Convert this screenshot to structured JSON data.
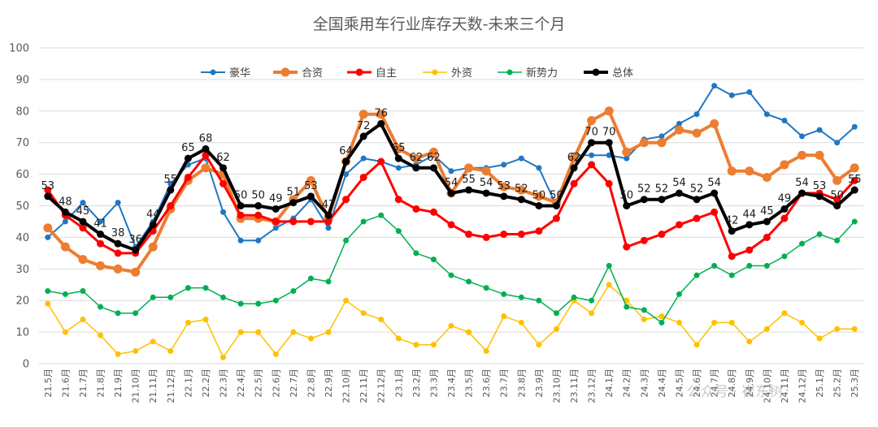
{
  "chart_data": {
    "type": "line",
    "title": "全国乘用车行业库存天数-未来三个月",
    "xlabel": "",
    "ylabel": "",
    "ylim": [
      0,
      100
    ],
    "yticks": [
      0,
      10,
      20,
      30,
      40,
      50,
      60,
      70,
      80,
      90,
      100
    ],
    "grid": true,
    "legend_position": "top",
    "categories": [
      "21.5月",
      "21.6月",
      "21.7月",
      "21.8月",
      "21.9月",
      "21.10月",
      "21.11月",
      "21.12月",
      "22.1月",
      "22.2月",
      "22.3月",
      "22.4月",
      "22.5月",
      "22.6月",
      "22.7月",
      "22.8月",
      "22.9月",
      "22.10月",
      "22.11月",
      "22.12月",
      "23.1月",
      "23.2月",
      "23.3月",
      "23.4月",
      "23.5月",
      "23.6月",
      "23.7月",
      "23.8月",
      "23.9月",
      "23.10月",
      "23.11月",
      "23.12月",
      "24.1月",
      "24.2月",
      "24.3月",
      "24.4月",
      "24.5月",
      "24.6月",
      "24.7月",
      "24.8月",
      "24.9月",
      "24.10月",
      "24.11月",
      "24.12月",
      "25.1月",
      "25.2月",
      "25.3月"
    ],
    "series": [
      {
        "name": "豪华",
        "color": "#1f77c4",
        "width": 2,
        "marker": 3.5,
        "values": [
          40,
          45,
          51,
          45,
          51,
          37,
          45,
          57,
          63,
          65,
          48,
          39,
          39,
          43,
          46,
          52,
          43,
          60,
          65,
          64,
          62,
          63,
          66,
          61,
          62,
          62,
          63,
          65,
          62,
          50,
          66,
          66,
          66,
          65,
          71,
          72,
          76,
          79,
          88,
          85,
          86,
          79,
          77,
          72,
          74,
          70,
          75
        ]
      },
      {
        "name": "合资",
        "color": "#ed7d31",
        "width": 4,
        "marker": 5.5,
        "values": [
          43,
          37,
          33,
          31,
          30,
          29,
          37,
          49,
          58,
          62,
          60,
          46,
          46,
          45,
          52,
          58,
          46,
          64,
          79,
          79,
          68,
          65,
          67,
          54,
          62,
          61,
          56,
          55,
          53,
          51,
          65,
          77,
          80,
          67,
          70,
          70,
          74,
          73,
          76,
          61,
          61,
          59,
          63,
          66,
          66,
          58,
          62
        ]
      },
      {
        "name": "自主",
        "color": "#ff0000",
        "width": 3,
        "marker": 4.5,
        "values": [
          55,
          47,
          43,
          38,
          35,
          35,
          42,
          50,
          59,
          66,
          57,
          47,
          47,
          45,
          45,
          45,
          45,
          52,
          59,
          64,
          52,
          49,
          48,
          44,
          41,
          40,
          41,
          41,
          42,
          46,
          57,
          63,
          57,
          37,
          39,
          41,
          44,
          46,
          48,
          34,
          36,
          40,
          46,
          54,
          54,
          52,
          58
        ]
      },
      {
        "name": "外资",
        "color": "#ffc000",
        "width": 1.5,
        "marker": 3.5,
        "values": [
          19,
          10,
          14,
          9,
          3,
          4,
          7,
          4,
          13,
          14,
          2,
          10,
          10,
          3,
          10,
          8,
          10,
          20,
          16,
          14,
          8,
          6,
          6,
          12,
          10,
          4,
          15,
          13,
          6,
          11,
          20,
          16,
          25,
          20,
          14,
          15,
          13,
          6,
          13,
          13,
          7,
          11,
          16,
          13,
          8,
          11,
          11
        ]
      },
      {
        "name": "新势力",
        "color": "#00b050",
        "width": 1.5,
        "marker": 3.5,
        "values": [
          23,
          22,
          23,
          18,
          16,
          16,
          21,
          21,
          24,
          24,
          21,
          19,
          19,
          20,
          23,
          27,
          26,
          39,
          45,
          47,
          42,
          35,
          33,
          28,
          26,
          24,
          22,
          21,
          20,
          16,
          21,
          20,
          31,
          18,
          17,
          13,
          22,
          28,
          31,
          28,
          31,
          31,
          34,
          38,
          41,
          39,
          45
        ]
      },
      {
        "name": "总体",
        "color": "#000000",
        "width": 4,
        "marker": 4.5,
        "values": [
          53,
          48,
          45,
          41,
          38,
          36,
          44,
          55,
          65,
          68,
          62,
          50,
          50,
          49,
          51,
          53,
          47,
          64,
          72,
          76,
          65,
          62,
          62,
          54,
          55,
          54,
          53,
          52,
          50,
          50,
          62,
          70,
          70,
          50,
          52,
          52,
          54,
          52,
          54,
          42,
          44,
          45,
          49,
          54,
          53,
          50,
          55
        ]
      }
    ],
    "data_labels": [
      {
        "i": 0,
        "text": "53"
      },
      {
        "i": 1,
        "text": "48"
      },
      {
        "i": 2,
        "text": "45"
      },
      {
        "i": 3,
        "text": "41"
      },
      {
        "i": 4,
        "text": "38"
      },
      {
        "i": 5,
        "text": "36"
      },
      {
        "i": 6,
        "text": "44"
      },
      {
        "i": 7,
        "text": "55"
      },
      {
        "i": 8,
        "text": "65"
      },
      {
        "i": 9,
        "text": "68"
      },
      {
        "i": 10,
        "text": "62"
      },
      {
        "i": 11,
        "text": "50"
      },
      {
        "i": 12,
        "text": "50"
      },
      {
        "i": 13,
        "text": "49"
      },
      {
        "i": 14,
        "text": "51"
      },
      {
        "i": 15,
        "text": "53"
      },
      {
        "i": 16,
        "text": "47"
      },
      {
        "i": 17,
        "text": "64"
      },
      {
        "i": 18,
        "text": "72"
      },
      {
        "i": 19,
        "text": "76"
      },
      {
        "i": 20,
        "text": "65"
      },
      {
        "i": 21,
        "text": "62"
      },
      {
        "i": 22,
        "text": "62"
      },
      {
        "i": 23,
        "text": "54"
      },
      {
        "i": 24,
        "text": "55"
      },
      {
        "i": 25,
        "text": "54"
      },
      {
        "i": 26,
        "text": "53"
      },
      {
        "i": 27,
        "text": "52"
      },
      {
        "i": 28,
        "text": "50"
      },
      {
        "i": 29,
        "text": "50"
      },
      {
        "i": 30,
        "text": "62"
      },
      {
        "i": 31,
        "text": "70"
      },
      {
        "i": 32,
        "text": "70"
      },
      {
        "i": 33,
        "text": "50"
      },
      {
        "i": 34,
        "text": "52"
      },
      {
        "i": 35,
        "text": "52"
      },
      {
        "i": 36,
        "text": "54"
      },
      {
        "i": 37,
        "text": "52"
      },
      {
        "i": 38,
        "text": "54"
      },
      {
        "i": 39,
        "text": "42"
      },
      {
        "i": 40,
        "text": "44"
      },
      {
        "i": 41,
        "text": "45"
      },
      {
        "i": 42,
        "text": "49"
      },
      {
        "i": 43,
        "text": "54"
      },
      {
        "i": 44,
        "text": "53"
      },
      {
        "i": 45,
        "text": "50"
      },
      {
        "i": 46,
        "text": "55"
      }
    ]
  },
  "watermark": "公众号 · 崔东树"
}
